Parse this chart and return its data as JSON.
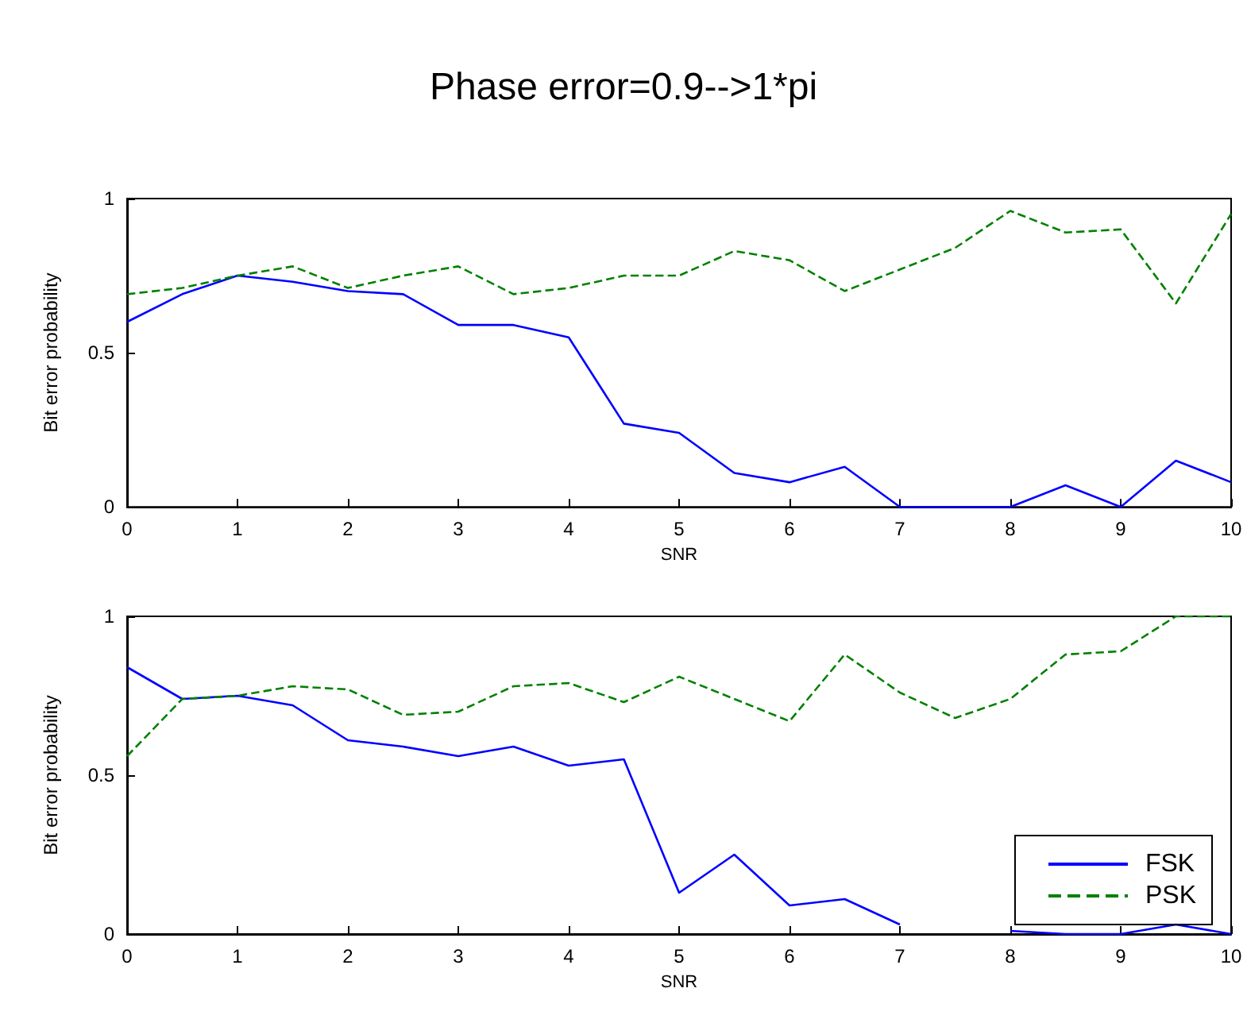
{
  "chart_data": [
    {
      "type": "line",
      "title": "Phase error=0.9-->1*pi",
      "xlabel": "SNR",
      "ylabel": "Bit error probability",
      "x": [
        0,
        0.5,
        1,
        1.5,
        2,
        2.5,
        3,
        3.5,
        4,
        4.5,
        5,
        5.5,
        6,
        6.5,
        7,
        7.5,
        8,
        8.5,
        9,
        9.5,
        10
      ],
      "xlim": [
        0,
        10
      ],
      "xticks": [
        0,
        1,
        2,
        3,
        4,
        5,
        6,
        7,
        8,
        9,
        10
      ],
      "ylim": [
        0,
        1
      ],
      "yticks": [
        0,
        0.5,
        1
      ],
      "grid": false,
      "legend": false,
      "marker": "none",
      "series": [
        {
          "color": "#0000ff",
          "line_style": "solid",
          "values": [
            0.6,
            0.69,
            0.75,
            0.73,
            0.7,
            0.69,
            0.59,
            0.59,
            0.55,
            0.27,
            0.24,
            0.11,
            0.08,
            0.13,
            0,
            0,
            0,
            0.07,
            0,
            0.15,
            0.08
          ]
        },
        {
          "color": "#008000",
          "line_style": "dashed",
          "values": [
            0.69,
            0.71,
            0.75,
            0.78,
            0.71,
            0.75,
            0.78,
            0.69,
            0.71,
            0.75,
            0.75,
            0.83,
            0.8,
            0.7,
            0.77,
            0.84,
            0.96,
            0.89,
            0.9,
            0.66,
            0.95
          ]
        }
      ]
    },
    {
      "type": "line",
      "xlabel": "SNR",
      "ylabel": "Bit error probability",
      "x": [
        0,
        0.5,
        1,
        1.5,
        2,
        2.5,
        3,
        3.5,
        4,
        4.5,
        5,
        5.5,
        6,
        6.5,
        7,
        7.5,
        8,
        8.5,
        9,
        9.5,
        10
      ],
      "xlim": [
        0,
        10
      ],
      "xticks": [
        0,
        1,
        2,
        3,
        4,
        5,
        6,
        7,
        8,
        9,
        10
      ],
      "ylim": [
        0,
        1
      ],
      "yticks": [
        0,
        0.5,
        1
      ],
      "grid": false,
      "legend": "bottom right",
      "marker": "none",
      "series": [
        {
          "name": "FSK",
          "color": "#0000ff",
          "line_style": "solid",
          "values": [
            0.84,
            0.74,
            0.75,
            0.72,
            0.61,
            0.59,
            0.56,
            0.59,
            0.53,
            0.55,
            0.13,
            0.25,
            0.09,
            0.11,
            0.03,
            null,
            0.01,
            0,
            0,
            0.03,
            0
          ]
        },
        {
          "name": "PSK",
          "color": "#008000",
          "line_style": "dashed",
          "values": [
            0.56,
            0.74,
            0.75,
            0.78,
            0.77,
            0.69,
            0.7,
            0.78,
            0.79,
            0.73,
            0.81,
            0.74,
            0.67,
            0.88,
            0.76,
            0.68,
            0.74,
            0.88,
            0.89,
            1,
            1
          ]
        }
      ]
    }
  ]
}
